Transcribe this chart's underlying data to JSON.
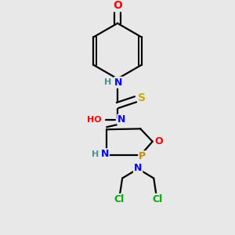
{
  "bg_color": "#e8e8e8",
  "atom_colors": {
    "C": "#000000",
    "N": "#0000ff",
    "O": "#ff0000",
    "S": "#ccaa00",
    "P": "#cc8800",
    "Cl": "#00aa00",
    "H": "#4a9090"
  },
  "bond_color": "#000000",
  "bond_width": 1.6,
  "font_size": 9
}
